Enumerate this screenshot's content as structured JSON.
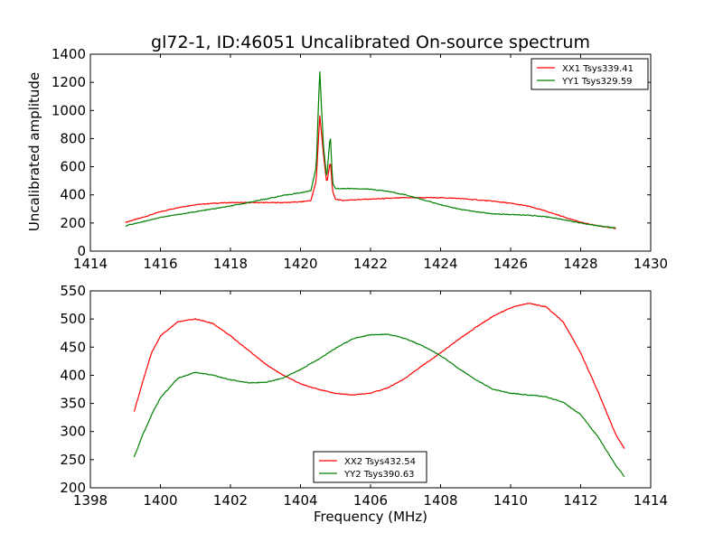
{
  "chart_data": [
    {
      "type": "line",
      "title": "gl72-1, ID:46051 Uncalibrated On-source spectrum",
      "xlabel": "",
      "ylabel": "Uncalibrated amplitude",
      "xlim": [
        1414,
        1430
      ],
      "ylim": [
        0,
        1400
      ],
      "xticks": [
        1414,
        1416,
        1418,
        1420,
        1422,
        1424,
        1426,
        1428,
        1430
      ],
      "yticks": [
        0,
        200,
        400,
        600,
        800,
        1000,
        1200,
        1400
      ],
      "legend_position": "top-right",
      "series": [
        {
          "name": "XX1 Tsys339.41",
          "color": "#ff0000",
          "x": [
            1415.0,
            1415.5,
            1416.0,
            1416.5,
            1417.0,
            1417.5,
            1418.0,
            1418.5,
            1419.0,
            1419.5,
            1420.0,
            1420.3,
            1420.45,
            1420.55,
            1420.65,
            1420.75,
            1420.85,
            1420.92,
            1421.0,
            1421.2,
            1421.5,
            1422.0,
            1422.5,
            1423.0,
            1423.5,
            1424.0,
            1424.5,
            1425.0,
            1425.5,
            1426.0,
            1426.5,
            1427.0,
            1427.5,
            1428.0,
            1428.5,
            1429.0
          ],
          "y": [
            205,
            240,
            280,
            310,
            330,
            340,
            345,
            345,
            345,
            345,
            350,
            360,
            500,
            970,
            700,
            480,
            640,
            420,
            370,
            360,
            365,
            370,
            375,
            380,
            380,
            380,
            375,
            365,
            355,
            340,
            320,
            285,
            245,
            205,
            180,
            160
          ]
        },
        {
          "name": "YY1 Tsys329.59",
          "color": "#008000",
          "x": [
            1415.0,
            1415.5,
            1416.0,
            1416.5,
            1417.0,
            1417.5,
            1418.0,
            1418.5,
            1419.0,
            1419.5,
            1420.0,
            1420.3,
            1420.45,
            1420.55,
            1420.65,
            1420.75,
            1420.85,
            1420.92,
            1421.0,
            1421.2,
            1421.5,
            1422.0,
            1422.5,
            1423.0,
            1423.5,
            1424.0,
            1424.5,
            1425.0,
            1425.5,
            1426.0,
            1426.5,
            1427.0,
            1427.5,
            1428.0,
            1428.5,
            1429.0
          ],
          "y": [
            180,
            210,
            240,
            260,
            280,
            300,
            320,
            345,
            370,
            395,
            415,
            430,
            600,
            1290,
            760,
            520,
            830,
            480,
            445,
            445,
            445,
            440,
            425,
            400,
            365,
            330,
            300,
            280,
            265,
            260,
            255,
            245,
            225,
            200,
            180,
            165
          ]
        }
      ]
    },
    {
      "type": "line",
      "title": "",
      "xlabel": "Frequency (MHz)",
      "ylabel": "",
      "xlim": [
        1398,
        1414
      ],
      "ylim": [
        200,
        550
      ],
      "xticks": [
        1398,
        1400,
        1402,
        1404,
        1406,
        1408,
        1410,
        1412,
        1414
      ],
      "yticks": [
        200,
        250,
        300,
        350,
        400,
        450,
        500,
        550
      ],
      "legend_position": "bottom-center",
      "series": [
        {
          "name": "XX2 Tsys432.54",
          "color": "#ff0000",
          "x": [
            1399.25,
            1399.5,
            1399.75,
            1400.0,
            1400.5,
            1401.0,
            1401.5,
            1402.0,
            1402.5,
            1403.0,
            1403.5,
            1404.0,
            1404.5,
            1405.0,
            1405.5,
            1406.0,
            1406.5,
            1407.0,
            1407.5,
            1408.0,
            1408.5,
            1409.0,
            1409.5,
            1410.0,
            1410.5,
            1411.0,
            1411.5,
            1412.0,
            1412.5,
            1413.0,
            1413.25
          ],
          "y": [
            335,
            390,
            440,
            470,
            495,
            500,
            492,
            470,
            445,
            420,
            400,
            385,
            375,
            368,
            365,
            368,
            378,
            395,
            418,
            440,
            463,
            485,
            505,
            520,
            528,
            522,
            495,
            440,
            370,
            295,
            270
          ]
        },
        {
          "name": "YY2 Tsys390.63",
          "color": "#008000",
          "x": [
            1399.25,
            1399.5,
            1399.75,
            1400.0,
            1400.5,
            1401.0,
            1401.5,
            1402.0,
            1402.5,
            1403.0,
            1403.5,
            1404.0,
            1404.5,
            1405.0,
            1405.5,
            1406.0,
            1406.5,
            1407.0,
            1407.5,
            1408.0,
            1408.5,
            1409.0,
            1409.5,
            1410.0,
            1410.5,
            1411.0,
            1411.5,
            1412.0,
            1412.5,
            1413.0,
            1413.25
          ],
          "y": [
            255,
            295,
            330,
            360,
            395,
            405,
            400,
            392,
            387,
            387,
            395,
            410,
            428,
            448,
            465,
            472,
            473,
            465,
            452,
            435,
            413,
            392,
            375,
            368,
            365,
            362,
            352,
            330,
            290,
            240,
            220
          ]
        }
      ]
    }
  ]
}
